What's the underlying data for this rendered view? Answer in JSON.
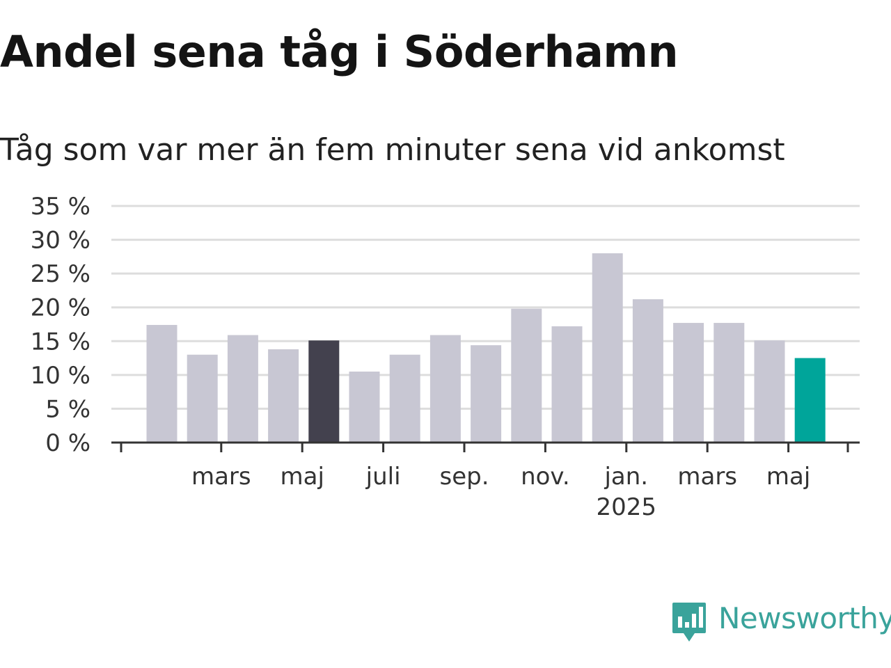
{
  "title": "Andel sena tåg i Söderhamn",
  "subtitle": "Tåg som var mer än fem minuter sena vid ankomst",
  "brand": {
    "name": "Newsworthy",
    "logo_icon": "bar-chart-speech-bubble-icon",
    "color": "#3aa39b"
  },
  "colors": {
    "bar_default": "#c8c7d3",
    "bar_highlight": "#43414e",
    "bar_latest": "#00a59a",
    "gridline": "#dddddd",
    "axis": "#333333"
  },
  "chart_data": {
    "type": "bar",
    "title": "Andel sena tåg i Söderhamn",
    "subtitle": "Tåg som var mer än fem minuter sena vid ankomst",
    "xlabel": "",
    "ylabel": "",
    "ylim": [
      0,
      35
    ],
    "y_ticks": [
      0,
      5,
      10,
      15,
      20,
      25,
      30,
      35
    ],
    "y_tick_labels": [
      "0 %",
      "5 %",
      "10 %",
      "15 %",
      "20 %",
      "25 %",
      "30 %",
      "35 %"
    ],
    "grid": true,
    "legend": "none",
    "categories": [
      "2024-02",
      "2024-03",
      "2024-04",
      "2024-05",
      "2024-06",
      "2024-07",
      "2024-08",
      "2024-09",
      "2024-10",
      "2024-11",
      "2024-12",
      "2025-01",
      "2025-02",
      "2025-03",
      "2025-04",
      "2025-05",
      "2025-06"
    ],
    "values": [
      17.4,
      13.0,
      15.9,
      13.8,
      15.1,
      10.5,
      13.0,
      15.9,
      14.4,
      19.8,
      17.2,
      28.0,
      21.2,
      17.7,
      17.7,
      15.1,
      12.5
    ],
    "highlight": {
      "2024-06": "bar_highlight",
      "2025-06": "bar_latest"
    },
    "x_tick_labels": [
      {
        "category": "2024-03",
        "label": "mars"
      },
      {
        "category": "2024-05",
        "label": "maj"
      },
      {
        "category": "2024-07",
        "label": "juli"
      },
      {
        "category": "2024-09",
        "label": "sep."
      },
      {
        "category": "2024-11",
        "label": "nov."
      },
      {
        "category": "2025-01",
        "label": "jan.",
        "sublabel": "2025"
      },
      {
        "category": "2025-03",
        "label": "mars"
      },
      {
        "category": "2025-05",
        "label": "maj"
      }
    ]
  }
}
